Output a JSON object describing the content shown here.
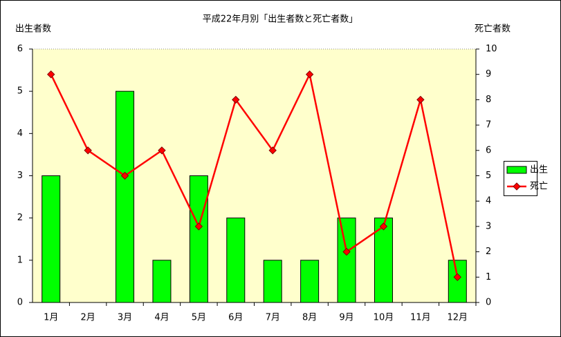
{
  "chart_data": {
    "type": "bar",
    "title": "平成22年月別「出生者数と死亡者数」",
    "ylabel": "出生者数",
    "y2label": "死亡者数",
    "categories": [
      "1月",
      "2月",
      "3月",
      "4月",
      "5月",
      "6月",
      "7月",
      "8月",
      "9月",
      "10月",
      "11月",
      "12月"
    ],
    "series": [
      {
        "name": "出生",
        "type": "bar",
        "color": "#00ff00",
        "values": [
          3,
          0,
          5,
          1,
          3,
          2,
          1,
          1,
          2,
          2,
          0,
          1
        ]
      },
      {
        "name": "死亡",
        "type": "line",
        "axis": "y2",
        "color": "#ff0000",
        "values": [
          9,
          6,
          5,
          6,
          3,
          8,
          6,
          9,
          2,
          3,
          8,
          1
        ]
      }
    ],
    "ylim": [
      0,
      6
    ],
    "yticks": [
      0,
      1,
      2,
      3,
      4,
      5,
      6
    ],
    "y2lim": [
      0,
      10
    ],
    "y2ticks": [
      0,
      1,
      2,
      3,
      4,
      5,
      6,
      7,
      8,
      9,
      10
    ],
    "legend": "right"
  }
}
